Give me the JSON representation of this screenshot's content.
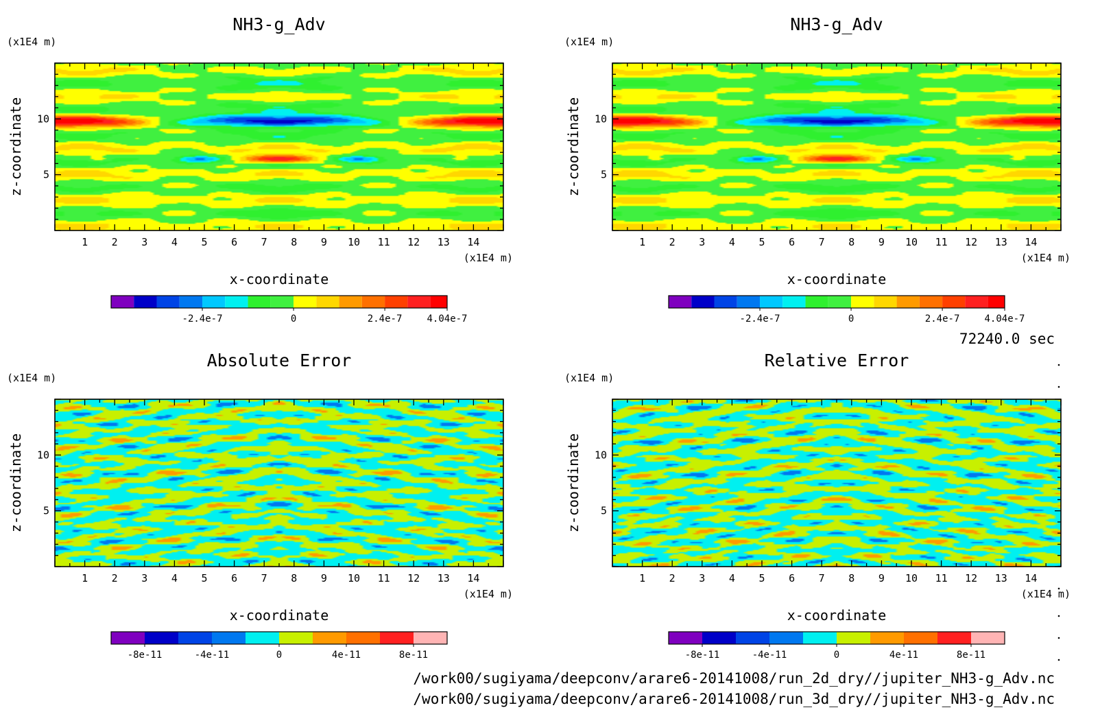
{
  "figure": {
    "time_label": "72240.0 sec",
    "files": [
      "/work00/sugiyama/deepconv/arare6-20141008/run_2d_dry//jupiter_NH3-g_Adv.nc",
      "/work00/sugiyama/deepconv/arare6-20141008/run_3d_dry//jupiter_NH3-g_Adv.nc"
    ]
  },
  "chart_data": [
    {
      "type": "heatmap",
      "title": "NH3-g_Adv",
      "xlabel": "x-coordinate",
      "ylabel": "z-coordinate",
      "x_unit": "(x1E4 m)",
      "y_unit": "(x1E4 m)",
      "xlim": [
        0,
        15
      ],
      "ylim": [
        0,
        15
      ],
      "x_ticks": [
        1,
        2,
        3,
        4,
        5,
        6,
        7,
        8,
        9,
        10,
        11,
        12,
        13,
        14
      ],
      "y_ticks": [
        5,
        10
      ],
      "colorbar": {
        "labels": [
          {
            "v": -2.4e-07,
            "text": "-2.4e-7"
          },
          {
            "v": 0,
            "text": "0"
          },
          {
            "v": 2.4e-07,
            "text": "2.4e-7"
          },
          {
            "v": 4.04e-07,
            "text": "4.04e-7"
          }
        ],
        "min": -4.8e-07,
        "max": 4.04e-07,
        "bounds": [
          -4.8e-07,
          -4.2e-07,
          -3.6e-07,
          -3e-07,
          -2.4e-07,
          -1.8e-07,
          -1.2e-07,
          -6e-08,
          0,
          6e-08,
          1.2e-07,
          1.8e-07,
          2.4e-07,
          3e-07,
          3.6e-07,
          4.04e-07
        ],
        "colors": [
          "#7f00bf",
          "#0000c8",
          "#0044e6",
          "#0078f0",
          "#00c8ff",
          "#00f0f0",
          "#2ff02f",
          "#40f040",
          "#ffff00",
          "#ffd700",
          "#ff9a00",
          "#ff7000",
          "#ff4000",
          "#ff2020",
          "#ff0000"
        ]
      },
      "field": "adv",
      "name": "panel-adv-2d"
    },
    {
      "type": "heatmap",
      "title": "NH3-g_Adv",
      "xlabel": "x-coordinate",
      "ylabel": "z-coordinate",
      "x_unit": "(x1E4 m)",
      "y_unit": "(x1E4 m)",
      "xlim": [
        0,
        15
      ],
      "ylim": [
        0,
        15
      ],
      "x_ticks": [
        1,
        2,
        3,
        4,
        5,
        6,
        7,
        8,
        9,
        10,
        11,
        12,
        13,
        14
      ],
      "y_ticks": [
        5,
        10
      ],
      "colorbar": {
        "labels": [
          {
            "v": -2.4e-07,
            "text": "-2.4e-7"
          },
          {
            "v": 0,
            "text": "0"
          },
          {
            "v": 2.4e-07,
            "text": "2.4e-7"
          },
          {
            "v": 4.04e-07,
            "text": "4.04e-7"
          }
        ],
        "min": -4.8e-07,
        "max": 4.04e-07,
        "bounds": [
          -4.8e-07,
          -4.2e-07,
          -3.6e-07,
          -3e-07,
          -2.4e-07,
          -1.8e-07,
          -1.2e-07,
          -6e-08,
          0,
          6e-08,
          1.2e-07,
          1.8e-07,
          2.4e-07,
          3e-07,
          3.6e-07,
          4.04e-07
        ],
        "colors": [
          "#7f00bf",
          "#0000c8",
          "#0044e6",
          "#0078f0",
          "#00c8ff",
          "#00f0f0",
          "#2ff02f",
          "#40f040",
          "#ffff00",
          "#ffd700",
          "#ff9a00",
          "#ff7000",
          "#ff4000",
          "#ff2020",
          "#ff0000"
        ]
      },
      "field": "adv",
      "name": "panel-adv-3d"
    },
    {
      "type": "heatmap",
      "title": "Absolute Error",
      "xlabel": "x-coordinate",
      "ylabel": "z-coordinate",
      "x_unit": "(x1E4 m)",
      "y_unit": "(x1E4 m)",
      "xlim": [
        0,
        15
      ],
      "ylim": [
        0,
        15
      ],
      "x_ticks": [
        1,
        2,
        3,
        4,
        5,
        6,
        7,
        8,
        9,
        10,
        11,
        12,
        13,
        14
      ],
      "y_ticks": [
        5,
        10
      ],
      "colorbar": {
        "labels": [
          {
            "v": -8e-11,
            "text": "-8e-11"
          },
          {
            "v": -4e-11,
            "text": "-4e-11"
          },
          {
            "v": 0,
            "text": "0"
          },
          {
            "v": 4e-11,
            "text": "4e-11"
          },
          {
            "v": 8e-11,
            "text": "8e-11"
          }
        ],
        "min": -1e-10,
        "max": 1e-10,
        "bounds": [
          -1e-10,
          -8e-11,
          -6e-11,
          -4e-11,
          -2e-11,
          0,
          2e-11,
          4e-11,
          6e-11,
          8e-11,
          1e-10
        ],
        "colors": [
          "#7f00bf",
          "#0000c8",
          "#0044e6",
          "#0078f0",
          "#00f0f0",
          "#c8f000",
          "#ff9a00",
          "#ff7000",
          "#ff2020",
          "#ffb4b4"
        ]
      },
      "field": "abs",
      "name": "panel-abs-error"
    },
    {
      "type": "heatmap",
      "title": "Relative Error",
      "xlabel": "x-coordinate",
      "ylabel": "z-coordinate",
      "x_unit": "(x1E4 m)",
      "y_unit": "(x1E4 m)",
      "xlim": [
        0,
        15
      ],
      "ylim": [
        0,
        15
      ],
      "x_ticks": [
        1,
        2,
        3,
        4,
        5,
        6,
        7,
        8,
        9,
        10,
        11,
        12,
        13,
        14
      ],
      "y_ticks": [
        5,
        10
      ],
      "colorbar": {
        "labels": [
          {
            "v": -8e-11,
            "text": "-8e-11"
          },
          {
            "v": -4e-11,
            "text": "-4e-11"
          },
          {
            "v": 0,
            "text": "0"
          },
          {
            "v": 4e-11,
            "text": "4e-11"
          },
          {
            "v": 8e-11,
            "text": "8e-11"
          }
        ],
        "min": -1e-10,
        "max": 1e-10,
        "bounds": [
          -1e-10,
          -8e-11,
          -6e-11,
          -4e-11,
          -2e-11,
          0,
          2e-11,
          4e-11,
          6e-11,
          8e-11,
          1e-10
        ],
        "colors": [
          "#7f00bf",
          "#0000c8",
          "#0044e6",
          "#0078f0",
          "#00f0f0",
          "#c8f000",
          "#ff9a00",
          "#ff7000",
          "#ff2020",
          "#ffb4b4"
        ]
      },
      "field": "rel",
      "name": "panel-rel-error"
    }
  ]
}
